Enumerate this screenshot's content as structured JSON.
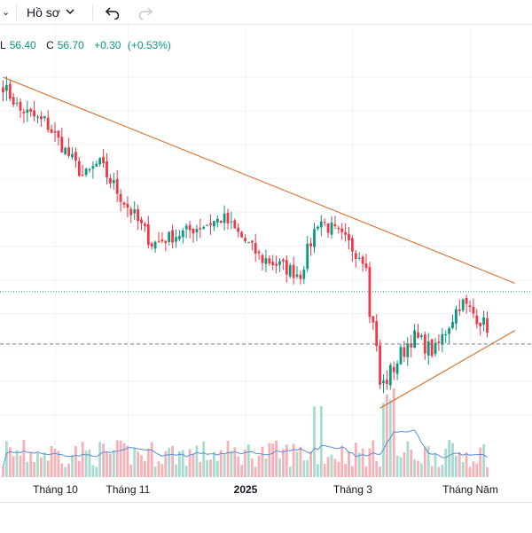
{
  "toolbar": {
    "profile_label": "Hồ sơ",
    "icons": [
      "chevron-down-icon",
      "undo-icon",
      "redo-icon"
    ]
  },
  "legend": {
    "low_label": "L",
    "low_value": "56.40",
    "close_label": "C",
    "close_value": "56.70",
    "change": "+0.30",
    "change_pct": "(+0.53%)"
  },
  "colors": {
    "up": "#089981",
    "down": "#f23645",
    "trendline": "#d2783c",
    "volume_ma": "#5b8fd6",
    "volume_up": "#a6dccf",
    "volume_down": "#f7b1b6",
    "grid": "#f0f3fa",
    "dotted_level": "#089981",
    "dashed_level": "#787b86"
  },
  "chart_data": {
    "type": "candlestick",
    "title": "",
    "xlabel": "",
    "ylabel": "",
    "x_tick_labels": [
      "Tháng 10",
      "Tháng 11",
      "2025",
      "Tháng 3",
      "Tháng Năm"
    ],
    "y_range": [
      48,
      71
    ],
    "grid": true,
    "segments": [
      {
        "count": 6,
        "start": 69.5,
        "end": 68.0,
        "wiggle": 0.8
      },
      {
        "count": 6,
        "start": 68.0,
        "end": 67.4,
        "wiggle": 0.8
      },
      {
        "count": 12,
        "start": 67.4,
        "end": 64.2,
        "wiggle": 0.9
      },
      {
        "count": 4,
        "start": 64.2,
        "end": 64.8,
        "wiggle": 0.9
      },
      {
        "count": 16,
        "start": 64.8,
        "end": 60.2,
        "wiggle": 1.0
      },
      {
        "count": 20,
        "start": 60.2,
        "end": 61.6,
        "wiggle": 0.8
      },
      {
        "count": 12,
        "start": 61.6,
        "end": 59.2,
        "wiggle": 0.8
      },
      {
        "count": 10,
        "start": 59.2,
        "end": 58.4,
        "wiggle": 0.9
      },
      {
        "count": 6,
        "start": 58.4,
        "end": 61.5,
        "wiggle": 1.0
      },
      {
        "count": 14,
        "start": 61.5,
        "end": 59.2,
        "wiggle": 1.0
      },
      {
        "count": 1,
        "start": 59.2,
        "end": 55.8,
        "wiggle": 0.0
      },
      {
        "count": 3,
        "start": 55.8,
        "end": 51.8,
        "wiggle": 1.2
      },
      {
        "count": 9,
        "start": 51.8,
        "end": 54.6,
        "wiggle": 1.2
      },
      {
        "count": 6,
        "start": 54.6,
        "end": 53.8,
        "wiggle": 1.0
      },
      {
        "count": 8,
        "start": 53.8,
        "end": 56.6,
        "wiggle": 1.0
      },
      {
        "count": 8,
        "start": 56.6,
        "end": 55.2,
        "wiggle": 0.9
      }
    ],
    "levels": {
      "dotted": 57.3,
      "dashed": 54.2
    },
    "trendlines": [
      {
        "from": [
          0,
          70.0
        ],
        "to": [
          148,
          57.8
        ]
      },
      {
        "from": [
          109,
          50.4
        ],
        "to": [
          148,
          55.0
        ]
      }
    ],
    "volume_range": [
      0,
      100
    ],
    "volume_ma_level": 20
  },
  "bottom": {}
}
